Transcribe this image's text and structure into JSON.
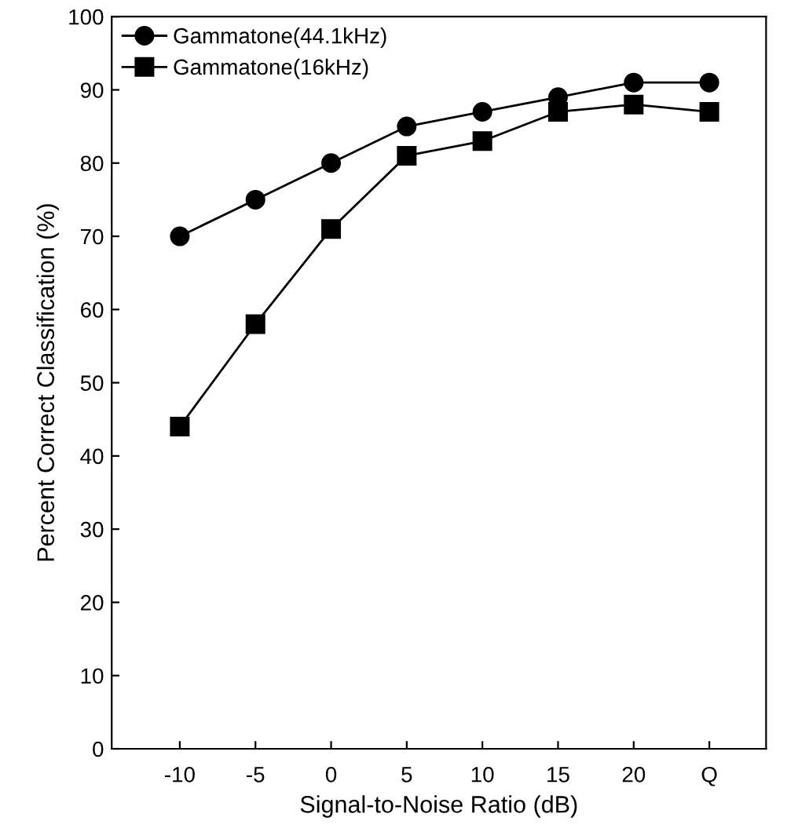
{
  "chart_data": {
    "type": "line",
    "xlabel": "Signal-to-Noise Ratio (dB)",
    "ylabel": "Percent Correct Classification (%)",
    "categories": [
      "-10",
      "-5",
      "0",
      "5",
      "10",
      "15",
      "20",
      "Q"
    ],
    "series": [
      {
        "name": "Gammatone(44.1kHz)",
        "color": "#000000",
        "marker": "circle",
        "values": [
          70,
          75,
          80,
          85,
          87,
          89,
          91,
          91
        ]
      },
      {
        "name": "Gammatone(16kHz)",
        "color": "#000000",
        "marker": "square",
        "values": [
          44,
          58,
          71,
          81,
          83,
          87,
          88,
          87
        ]
      }
    ],
    "ylim": [
      0,
      100
    ],
    "yticks": [
      0,
      10,
      20,
      30,
      40,
      50,
      60,
      70,
      80,
      90,
      100
    ],
    "grid": false,
    "legend": "top left",
    "line_style": "solid"
  }
}
